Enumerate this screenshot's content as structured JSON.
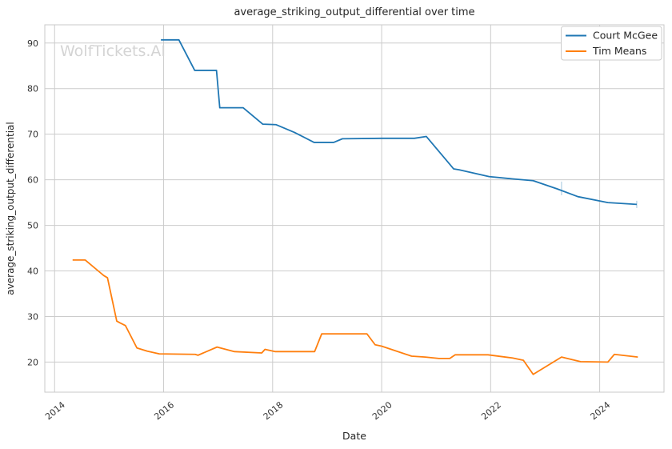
{
  "title": "average_striking_output_differential over time",
  "watermark": "WolfTickets.AI",
  "axes": {
    "xlabel": "Date",
    "ylabel": "average_striking_output_differential"
  },
  "legend": {
    "entries": [
      "Court McGee",
      "Tim Means"
    ]
  },
  "colors": {
    "series1": "#1f77b4",
    "series2": "#ff7f0e",
    "grid": "#cccccc",
    "spine": "#c9c9c9",
    "text": "#262626",
    "tick_text": "#333333",
    "watermark": "#d4d4d4"
  },
  "chart_data": {
    "type": "line",
    "title": "average_striking_output_differential over time",
    "xlabel": "Date",
    "ylabel": "average_striking_output_differential",
    "xlim": [
      2013.82,
      2025.18
    ],
    "ylim": [
      13.4,
      94.0
    ],
    "x_ticks": [
      2014,
      2016,
      2018,
      2020,
      2022,
      2024
    ],
    "y_ticks": [
      20,
      30,
      40,
      50,
      60,
      70,
      80,
      90
    ],
    "grid": true,
    "legend_position": "upper right",
    "series": [
      {
        "name": "Court McGee",
        "color": "#1f77b4",
        "points": [
          [
            2015.95,
            90.7
          ],
          [
            2016.28,
            90.7
          ],
          [
            2016.57,
            84.0
          ],
          [
            2016.97,
            84.0
          ],
          [
            2017.03,
            75.8
          ],
          [
            2017.46,
            75.8
          ],
          [
            2017.82,
            72.2
          ],
          [
            2018.06,
            72.1
          ],
          [
            2018.4,
            70.4
          ],
          [
            2018.76,
            68.2
          ],
          [
            2019.12,
            68.2
          ],
          [
            2019.28,
            69.0
          ],
          [
            2020.0,
            69.1
          ],
          [
            2020.6,
            69.1
          ],
          [
            2020.82,
            69.5
          ],
          [
            2021.32,
            62.4
          ],
          [
            2021.42,
            62.2
          ],
          [
            2021.97,
            60.7
          ],
          [
            2022.4,
            60.2
          ],
          [
            2022.78,
            59.8
          ],
          [
            2023.22,
            58.0
          ],
          [
            2023.6,
            56.3
          ],
          [
            2024.15,
            55.0
          ],
          [
            2024.68,
            54.6
          ]
        ],
        "faint_ticks": [
          {
            "x": 2023.3,
            "y1": 56.6,
            "y2": 59.6
          },
          {
            "x": 2024.68,
            "y1": 53.8,
            "y2": 55.4
          }
        ]
      },
      {
        "name": "Tim Means",
        "color": "#ff7f0e",
        "points": [
          [
            2014.33,
            42.4
          ],
          [
            2014.56,
            42.4
          ],
          [
            2014.9,
            39.0
          ],
          [
            2014.97,
            38.5
          ],
          [
            2015.14,
            29.0
          ],
          [
            2015.2,
            28.6
          ],
          [
            2015.3,
            28.0
          ],
          [
            2015.51,
            23.1
          ],
          [
            2015.7,
            22.4
          ],
          [
            2015.92,
            21.8
          ],
          [
            2016.58,
            21.7
          ],
          [
            2016.63,
            21.5
          ],
          [
            2016.98,
            23.3
          ],
          [
            2017.3,
            22.3
          ],
          [
            2017.8,
            22.0
          ],
          [
            2017.86,
            22.8
          ],
          [
            2018.05,
            22.3
          ],
          [
            2018.77,
            22.3
          ],
          [
            2018.9,
            26.2
          ],
          [
            2019.73,
            26.2
          ],
          [
            2019.88,
            23.8
          ],
          [
            2020.0,
            23.5
          ],
          [
            2020.55,
            21.3
          ],
          [
            2020.8,
            21.1
          ],
          [
            2021.05,
            20.8
          ],
          [
            2021.25,
            20.8
          ],
          [
            2021.35,
            21.6
          ],
          [
            2021.95,
            21.6
          ],
          [
            2022.4,
            20.9
          ],
          [
            2022.6,
            20.4
          ],
          [
            2022.78,
            17.3
          ],
          [
            2023.3,
            21.1
          ],
          [
            2023.65,
            20.1
          ],
          [
            2024.15,
            20.0
          ],
          [
            2024.27,
            21.7
          ],
          [
            2024.7,
            21.1
          ]
        ],
        "faint_ticks": []
      }
    ]
  }
}
